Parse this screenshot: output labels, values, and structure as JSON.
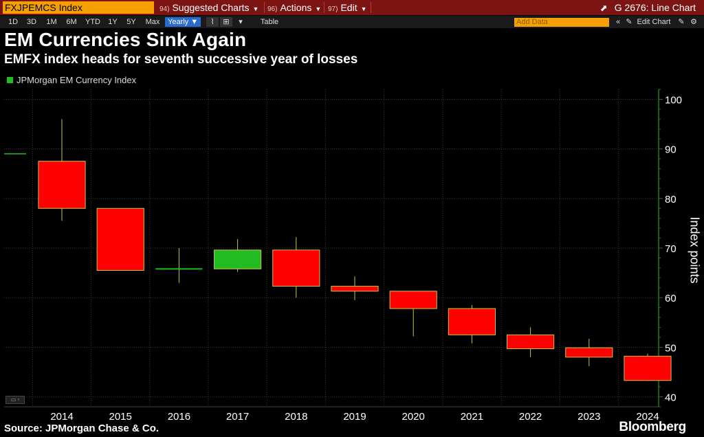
{
  "topbar": {
    "ticker": "FXJPEMCS Index",
    "menus": [
      {
        "num": "94)",
        "label": "Suggested Charts"
      },
      {
        "num": "96)",
        "label": "Actions"
      },
      {
        "num": "97)",
        "label": "Edit"
      }
    ],
    "chart_id": "G 2676: Line Chart"
  },
  "toolbar": {
    "periods": [
      "1D",
      "3D",
      "1M",
      "6M",
      "YTD",
      "1Y",
      "5Y",
      "Max"
    ],
    "frequency": "Yearly ▼",
    "table_label": "Table",
    "add_data_placeholder": "Add Data",
    "edit_chart_label": "Edit Chart"
  },
  "header": {
    "title": "EM Currencies Sink Again",
    "subtitle": "EMFX index heads for seventh successive year of losses"
  },
  "footer": {
    "source": "Source: JPMorgan Chase & Co.",
    "brand": "Bloomberg"
  },
  "colors": {
    "up": "#22bb22",
    "down": "#ff0000",
    "wick": "#c8c840",
    "axis": "#1f7a1f"
  },
  "chart_data": {
    "type": "candlestick",
    "series_name": "JPMorgan EM Currency Index",
    "ylabel": "Index points",
    "ylim": [
      38,
      102
    ],
    "yticks": [
      40,
      50,
      60,
      70,
      80,
      90,
      100
    ],
    "grid": true,
    "pre_start_level": 89,
    "candles": [
      {
        "x": "2014",
        "open": 87.5,
        "high": 96,
        "low": 75.5,
        "close": 78
      },
      {
        "x": "2015",
        "open": 78,
        "high": 78,
        "low": 65.5,
        "close": 65.5
      },
      {
        "x": "2016",
        "open": 65.7,
        "high": 70,
        "low": 63,
        "close": 65.8
      },
      {
        "x": "2017",
        "open": 65.8,
        "high": 71.8,
        "low": 65.2,
        "close": 69.6
      },
      {
        "x": "2018",
        "open": 69.6,
        "high": 72.2,
        "low": 60,
        "close": 62.3
      },
      {
        "x": "2019",
        "open": 62.3,
        "high": 64.3,
        "low": 59.5,
        "close": 61.3
      },
      {
        "x": "2020",
        "open": 61.3,
        "high": 61.3,
        "low": 52.2,
        "close": 57.8
      },
      {
        "x": "2021",
        "open": 57.8,
        "high": 58.5,
        "low": 50.8,
        "close": 52.5
      },
      {
        "x": "2022",
        "open": 52.5,
        "high": 54,
        "low": 48,
        "close": 49.7
      },
      {
        "x": "2023",
        "open": 49.9,
        "high": 51.7,
        "low": 46.2,
        "close": 48
      },
      {
        "x": "2024",
        "open": 48.2,
        "high": 48.7,
        "low": 43.2,
        "close": 43.3
      }
    ]
  }
}
